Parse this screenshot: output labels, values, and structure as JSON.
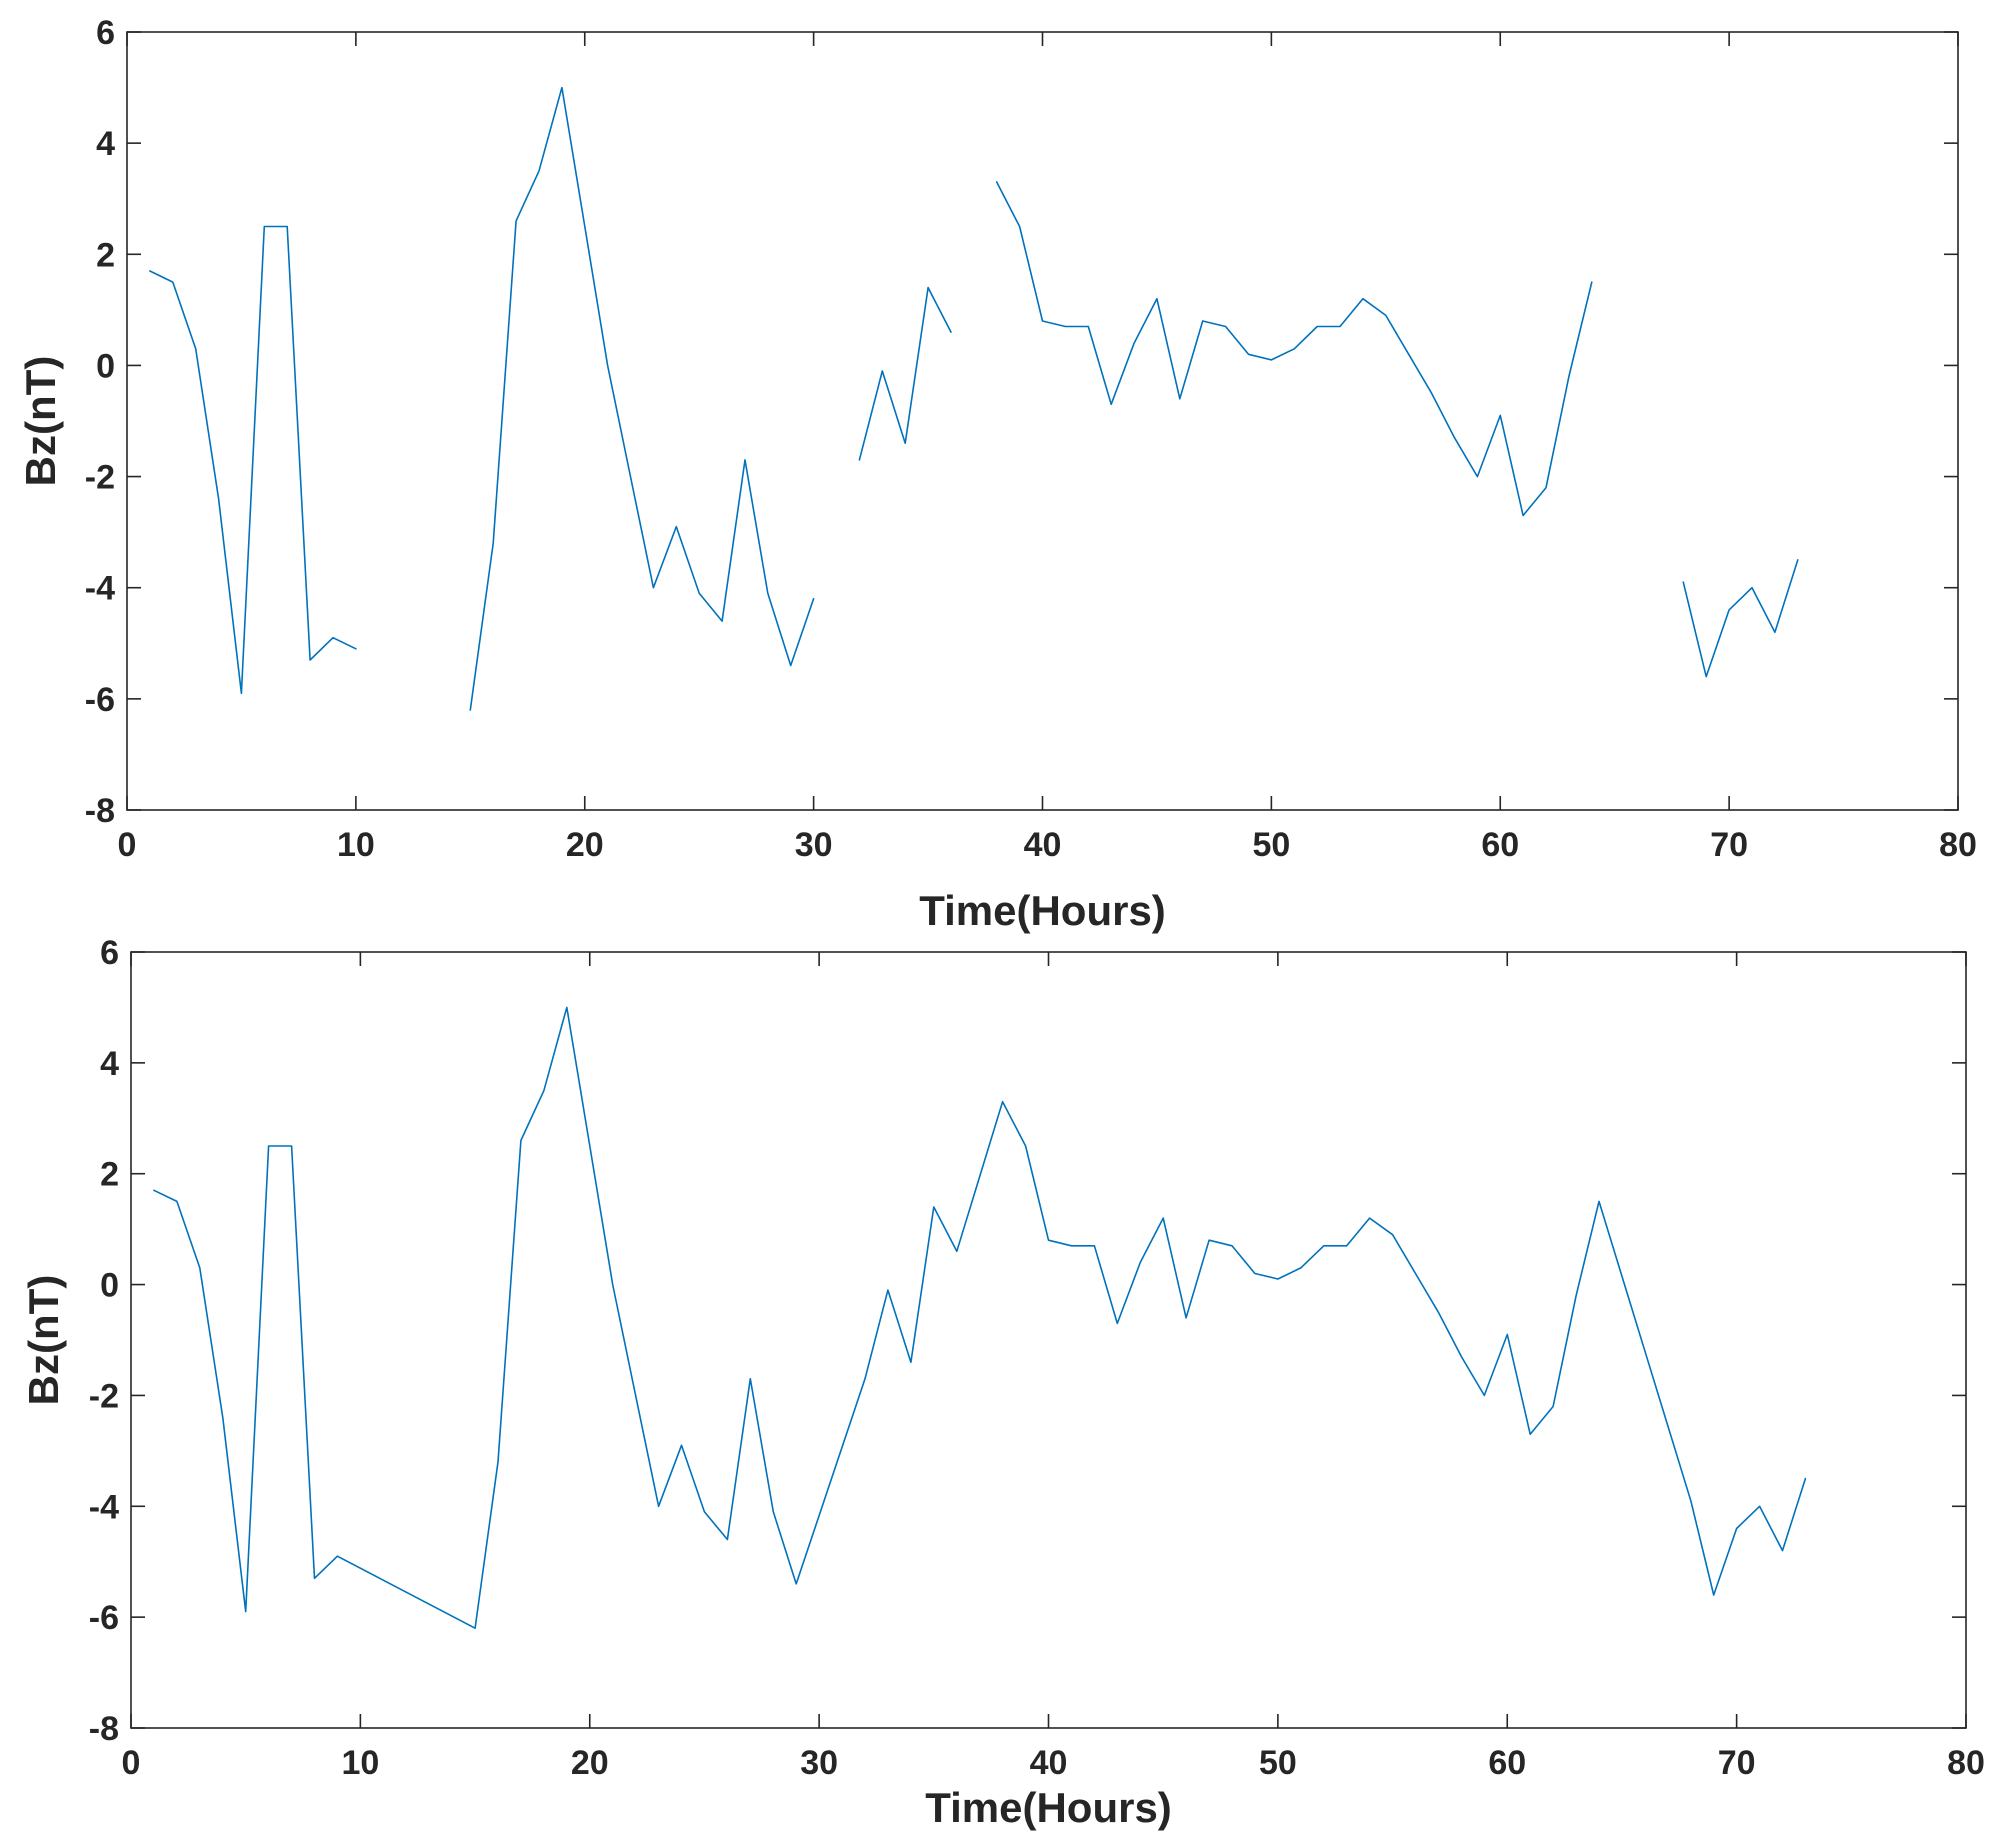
{
  "chart_data": [
    {
      "type": "line",
      "xlabel": "Time(Hours)",
      "ylabel": "Bz(nT)",
      "xlim": [
        0,
        80
      ],
      "ylim": [
        -8,
        6
      ],
      "xticks": [
        "0",
        "10",
        "20",
        "30",
        "40",
        "50",
        "60",
        "70",
        "80"
      ],
      "yticks": [
        "-8",
        "-6",
        "-4",
        "-2",
        "0",
        "2",
        "4",
        "6"
      ],
      "grid": false,
      "color": "#0072BD",
      "series": [
        {
          "x": [
            1,
            2,
            3,
            4,
            5,
            6,
            7,
            8,
            9,
            10,
            11,
            12,
            13,
            14,
            15,
            16,
            17,
            18,
            19,
            20,
            21,
            22,
            23,
            24,
            25,
            26,
            27,
            28,
            29,
            30,
            31,
            32,
            33,
            34,
            35,
            36,
            37,
            38,
            39,
            40,
            41,
            42,
            43,
            44,
            45,
            46,
            47,
            48,
            49,
            50,
            51,
            52,
            53,
            54,
            55,
            56,
            57,
            58,
            59,
            60,
            61,
            62,
            63,
            64,
            65,
            66,
            67,
            68,
            69,
            70,
            71,
            72,
            73
          ],
          "y": [
            1.7,
            1.5,
            0.3,
            -2.4,
            -5.9,
            2.5,
            2.5,
            -5.3,
            -4.9,
            -5.1,
            null,
            null,
            null,
            null,
            -6.2,
            -3.2,
            2.6,
            3.5,
            5.0,
            2.5,
            0.0,
            -2.0,
            -4.0,
            -2.9,
            -4.1,
            -4.6,
            -1.7,
            -4.1,
            -5.4,
            -4.2,
            null,
            -1.7,
            -0.1,
            -1.4,
            1.4,
            0.6,
            null,
            3.3,
            2.5,
            0.8,
            0.7,
            0.7,
            -0.7,
            0.4,
            1.2,
            -0.6,
            0.8,
            0.7,
            0.2,
            0.1,
            0.3,
            0.7,
            0.7,
            1.2,
            0.9,
            0.2,
            -0.5,
            -1.3,
            -2.0,
            -0.9,
            -2.7,
            -2.2,
            -0.2,
            1.5,
            null,
            null,
            null,
            -3.9,
            -5.6,
            -4.4,
            -4.0,
            -4.8,
            -3.5
          ]
        }
      ]
    },
    {
      "type": "line",
      "xlabel": "Time(Hours)",
      "ylabel": "Bz(nT)",
      "xlim": [
        0,
        80
      ],
      "ylim": [
        -8,
        6
      ],
      "xticks": [
        "0",
        "10",
        "20",
        "30",
        "40",
        "50",
        "60",
        "70",
        "80"
      ],
      "yticks": [
        "-8",
        "-6",
        "-4",
        "-2",
        "0",
        "2",
        "4",
        "6"
      ],
      "grid": false,
      "color": "#0072BD",
      "series": [
        {
          "x": [
            1,
            2,
            3,
            4,
            5,
            6,
            7,
            8,
            9,
            15,
            16,
            17,
            18,
            19,
            20,
            21,
            22,
            23,
            24,
            25,
            26,
            27,
            28,
            29,
            32,
            33,
            34,
            35,
            36,
            38,
            39,
            40,
            41,
            42,
            43,
            44,
            45,
            46,
            47,
            48,
            49,
            50,
            51,
            52,
            53,
            54,
            55,
            56,
            57,
            58,
            59,
            60,
            61,
            62,
            63,
            64,
            68,
            69,
            70,
            71,
            72,
            73
          ],
          "y": [
            1.7,
            1.5,
            0.3,
            -2.4,
            -5.9,
            2.5,
            2.5,
            -5.3,
            -4.9,
            -6.2,
            -3.2,
            2.6,
            3.5,
            5.0,
            2.5,
            0.0,
            -2.0,
            -4.0,
            -2.9,
            -4.1,
            -4.6,
            -1.7,
            -4.1,
            -5.4,
            -1.7,
            -0.1,
            -1.4,
            1.4,
            0.6,
            3.3,
            2.5,
            0.8,
            0.7,
            0.7,
            -0.7,
            0.4,
            1.2,
            -0.6,
            0.8,
            0.7,
            0.2,
            0.1,
            0.3,
            0.7,
            0.7,
            1.2,
            0.9,
            0.2,
            -0.5,
            -1.3,
            -2.0,
            -0.9,
            -2.7,
            -2.2,
            -0.2,
            1.5,
            -3.9,
            -5.6,
            -4.4,
            -4.0,
            -4.8,
            -3.5
          ]
        }
      ]
    }
  ]
}
